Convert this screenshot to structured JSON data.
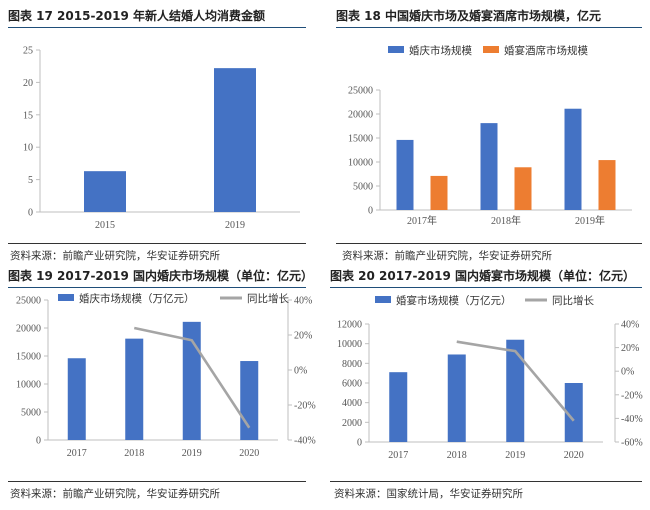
{
  "colors": {
    "blue": "#4472c4",
    "orange": "#ed7d31",
    "gray": "#a5a5a5",
    "rule": "#1f4e79"
  },
  "panels": [
    {
      "title": "图表 17 2015-2019 年新人结婚人均消费金额",
      "source": "",
      "chart_data": {
        "type": "bar",
        "title": "图表 17 2015-2019 年新人结婚人均消费金额",
        "categories": [
          "2015",
          "2019"
        ],
        "series": [
          {
            "values": [
              6.3,
              22.2
            ]
          }
        ],
        "ylim": [
          0,
          25
        ],
        "yticks": [
          "0",
          "5",
          "10",
          "15",
          "20",
          "25"
        ],
        "grid": false
      }
    },
    {
      "title": "图表 18  中国婚庆市场及婚宴酒席市场规模，亿元",
      "source": "资料来源：前瞻产业研究院，华安证券研究所",
      "chart_data": {
        "type": "bar",
        "title": "图表 18  中国婚庆市场及婚宴酒席市场规模，亿元",
        "categories": [
          "2017年",
          "2018年",
          "2019年"
        ],
        "series": [
          {
            "name": "婚庆市场规模",
            "values": [
              14600,
              18100,
              21100
            ]
          },
          {
            "name": "婚宴酒席市场规模",
            "values": [
              7100,
              8900,
              10400
            ]
          }
        ],
        "ylim": [
          0,
          25000
        ],
        "yticks": [
          "0",
          "5000",
          "10000",
          "15000",
          "20000",
          "25000"
        ],
        "legend": "top-left",
        "grid": false
      }
    },
    {
      "title": "图表 19 2017-2019 国内婚庆市场规模（单位：亿元）",
      "source": "资料来源：前瞻产业研究院，华安证券研究所",
      "chart_data": {
        "type": "bar",
        "title": "图表 19 2017-2019 国内婚庆市场规模（单位：亿元）",
        "categories": [
          "2017",
          "2018",
          "2019",
          "2020"
        ],
        "series": [
          {
            "name": "婚庆市场规模（万亿元）",
            "values": [
              14600,
              18100,
              21100,
              14100
            ],
            "axis": "left"
          },
          {
            "name": "同比增长",
            "values": [
              null,
              24,
              17,
              -33
            ],
            "axis": "right",
            "kind": "line"
          }
        ],
        "ylim": [
          0,
          25000
        ],
        "y2lim": [
          -40,
          40
        ],
        "yticks": [
          "0",
          "5000",
          "10000",
          "15000",
          "20000",
          "25000"
        ],
        "y2ticks": [
          "-40%",
          "-20%",
          "0%",
          "20%",
          "40%"
        ],
        "legend": "top",
        "grid": false
      }
    },
    {
      "title": "图表 20 2017-2019 国内婚宴市场规模（单位：亿元）",
      "source": "资料来源：国家统计局，华安证券研究所",
      "chart_data": {
        "type": "bar",
        "title": "图表 20 2017-2019 国内婚宴市场规模（单位：亿元）",
        "categories": [
          "2017",
          "2018",
          "2019",
          "2020"
        ],
        "series": [
          {
            "name": "婚宴市场规模（万亿元）",
            "values": [
              7100,
              8900,
              10400,
              6000
            ],
            "axis": "left"
          },
          {
            "name": "同比增长",
            "values": [
              null,
              25,
              17,
              -42
            ],
            "axis": "right",
            "kind": "line"
          }
        ],
        "ylim": [
          0,
          12000
        ],
        "y2lim": [
          -60,
          40
        ],
        "yticks": [
          "0",
          "2000",
          "4000",
          "6000",
          "8000",
          "10000",
          "12000"
        ],
        "y2ticks": [
          "-60%",
          "-40%",
          "-20%",
          "0%",
          "20%",
          "40%"
        ],
        "legend": "top",
        "grid": false
      }
    }
  ],
  "extra_source": "资料来源：前瞻产业研究院，华安证券研究所"
}
